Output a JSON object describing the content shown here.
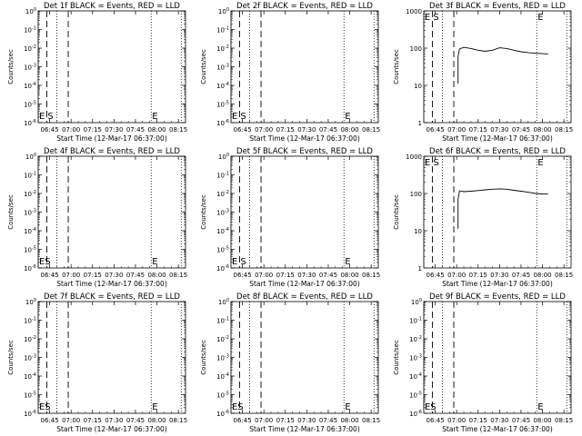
{
  "chart_data": [
    {
      "type": "line",
      "title": "Det 1f BLACK = Events, RED = LLD",
      "xlabel": "Start Time (12-Mar-17 06:37:00)",
      "ylabel": "Counts/sec",
      "scale": "log",
      "yticks": [
        "10^-6",
        "10^-5",
        "10^-4",
        "10^-3",
        "10^-2",
        "10^-1",
        "10^0"
      ],
      "xticks": [
        "06:45",
        "07:00",
        "07:15",
        "07:30",
        "07:45",
        "08:00",
        "08:15"
      ],
      "markers": [
        {
          "label": "E",
          "t": "06:37"
        },
        {
          "label": "S",
          "t": "06:43"
        },
        {
          "label": "E",
          "t": "07:56"
        }
      ],
      "series": []
    },
    {
      "type": "line",
      "title": "Det 2f BLACK = Events, RED = LLD",
      "xlabel": "Start Time (12-Mar-17 06:37:00)",
      "ylabel": "Counts/sec",
      "scale": "log",
      "yticks": [
        "10^-6",
        "10^-5",
        "10^-4",
        "10^-3",
        "10^-2",
        "10^-1",
        "10^0"
      ],
      "xticks": [
        "06:45",
        "07:00",
        "07:15",
        "07:30",
        "07:45",
        "08:00",
        "08:15"
      ],
      "markers": [
        {
          "label": "E",
          "t": "06:37"
        },
        {
          "label": "S",
          "t": "06:43"
        },
        {
          "label": "E",
          "t": "07:56"
        }
      ],
      "series": []
    },
    {
      "type": "line",
      "title": "Det 3f BLACK = Events, RED = LLD",
      "xlabel": "Start Time (12-Mar-17 06:37:00)",
      "ylabel": "Counts/sec",
      "scale": "log",
      "yticks": [
        "1",
        "10",
        "100",
        "1000"
      ],
      "xticks": [
        "06:45",
        "07:00",
        "07:15",
        "07:30",
        "07:45",
        "08:00",
        "08:15"
      ],
      "markers": [
        {
          "label": "E",
          "t": "06:37"
        },
        {
          "label": "S",
          "t": "06:43"
        },
        {
          "label": "E",
          "t": "07:56"
        }
      ],
      "series": [
        {
          "x": [
            "07:01",
            "07:02",
            "07:05",
            "07:10",
            "07:15",
            "07:20",
            "07:25",
            "07:30",
            "07:35",
            "07:40",
            "07:45",
            "07:50",
            "07:55",
            "08:00",
            "08:04"
          ],
          "y": [
            60,
            95,
            105,
            98,
            88,
            82,
            88,
            102,
            98,
            88,
            80,
            76,
            73,
            71,
            70
          ]
        }
      ]
    },
    {
      "type": "line",
      "title": "Det 4f BLACK = Events, RED = LLD",
      "xlabel": "Start Time (12-Mar-17 06:37:00)",
      "ylabel": "Counts/sec",
      "scale": "log",
      "yticks": [
        "10^-6",
        "10^-5",
        "10^-4",
        "10^-3",
        "10^-2",
        "10^-1",
        "10^0"
      ],
      "xticks": [
        "06:45",
        "07:00",
        "07:15",
        "07:30",
        "07:45",
        "08:00",
        "08:15"
      ],
      "markers": [
        {
          "label": "E",
          "t": "06:37"
        },
        {
          "label": "S",
          "t": "06:41"
        },
        {
          "label": "E",
          "t": "07:56"
        }
      ],
      "series": []
    },
    {
      "type": "line",
      "title": "Det 5f BLACK = Events, RED = LLD",
      "xlabel": "Start Time (12-Mar-17 06:37:00)",
      "ylabel": "Counts/sec",
      "scale": "log",
      "yticks": [
        "10^-6",
        "10^-5",
        "10^-4",
        "10^-3",
        "10^-2",
        "10^-1",
        "10^0"
      ],
      "xticks": [
        "06:45",
        "07:00",
        "07:15",
        "07:30",
        "07:45",
        "08:00",
        "08:15"
      ],
      "markers": [
        {
          "label": "E",
          "t": "06:37"
        },
        {
          "label": "S",
          "t": "06:43"
        },
        {
          "label": "E",
          "t": "07:56"
        }
      ],
      "series": []
    },
    {
      "type": "line",
      "title": "Det 6f BLACK = Events, RED = LLD",
      "xlabel": "Start Time (12-Mar-17 06:37:00)",
      "ylabel": "Counts/sec",
      "scale": "log",
      "yticks": [
        "1",
        "10",
        "100",
        "1000"
      ],
      "xticks": [
        "06:45",
        "07:00",
        "07:15",
        "07:30",
        "07:45",
        "08:00",
        "08:15"
      ],
      "markers": [
        {
          "label": "E",
          "t": "06:37"
        },
        {
          "label": "S",
          "t": "06:43"
        },
        {
          "label": "E",
          "t": "07:56"
        }
      ],
      "series": [
        {
          "x": [
            "07:01",
            "07:02",
            "07:05",
            "07:10",
            "07:15",
            "07:20",
            "07:25",
            "07:30",
            "07:35",
            "07:40",
            "07:45",
            "07:50",
            "07:55",
            "08:00",
            "08:04"
          ],
          "y": [
            70,
            118,
            112,
            115,
            120,
            125,
            130,
            133,
            130,
            122,
            115,
            108,
            100,
            97,
            96
          ]
        }
      ]
    },
    {
      "type": "line",
      "title": "Det 7f BLACK = Events, RED = LLD",
      "xlabel": "Start Time (12-Mar-17 06:37:00)",
      "ylabel": "Counts/sec",
      "scale": "log",
      "yticks": [
        "10^-6",
        "10^-5",
        "10^-4",
        "10^-3",
        "10^-2",
        "10^-1",
        "10^0"
      ],
      "xticks": [
        "06:45",
        "07:00",
        "07:15",
        "07:30",
        "07:45",
        "08:00",
        "08:15"
      ],
      "markers": [
        {
          "label": "E",
          "t": "06:37"
        },
        {
          "label": "S",
          "t": "06:41"
        },
        {
          "label": "E",
          "t": "07:56"
        }
      ],
      "series": []
    },
    {
      "type": "line",
      "title": "Det 8f BLACK = Events, RED = LLD",
      "xlabel": "Start Time (12-Mar-17 06:37:00)",
      "ylabel": "Counts/sec",
      "scale": "log",
      "yticks": [
        "10^-6",
        "10^-5",
        "10^-4",
        "10^-3",
        "10^-2",
        "10^-1",
        "10^0"
      ],
      "xticks": [
        "06:45",
        "07:00",
        "07:15",
        "07:30",
        "07:45",
        "08:00",
        "08:15"
      ],
      "markers": [
        {
          "label": "E",
          "t": "06:37"
        },
        {
          "label": "S",
          "t": "06:41"
        },
        {
          "label": "E",
          "t": "07:56"
        }
      ],
      "series": []
    },
    {
      "type": "line",
      "title": "Det 9f BLACK = Events, RED = LLD",
      "xlabel": "Start Time (12-Mar-17 06:37:00)",
      "ylabel": "Counts/sec",
      "scale": "log",
      "yticks": [
        "10^-6",
        "10^-5",
        "10^-4",
        "10^-3",
        "10^-2",
        "10^-1",
        "10^0"
      ],
      "xticks": [
        "06:45",
        "07:00",
        "07:15",
        "07:30",
        "07:45",
        "08:00",
        "08:15"
      ],
      "markers": [
        {
          "label": "E",
          "t": "06:37"
        },
        {
          "label": "S",
          "t": "06:41"
        },
        {
          "label": "E",
          "t": "07:56"
        }
      ],
      "series": []
    }
  ],
  "time_axis": {
    "start": "06:37",
    "end": "08:20",
    "dotted_lines": [
      "06:37",
      "06:50",
      "07:56",
      "08:17"
    ],
    "dashed_lines": [
      "06:43",
      "06:58"
    ]
  },
  "colors": {
    "ink": "#000000",
    "background": "#ffffff"
  }
}
